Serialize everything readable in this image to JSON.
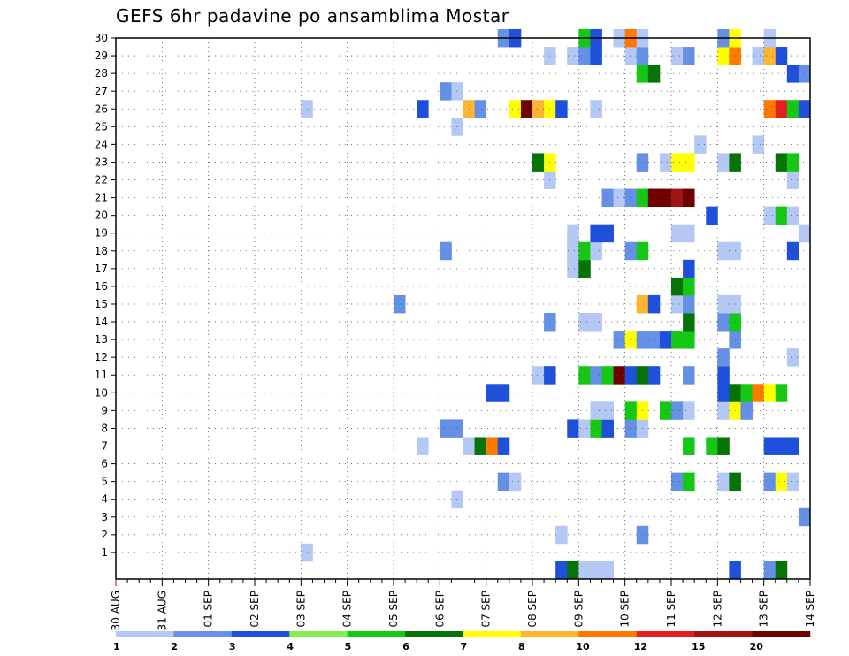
{
  "chart_data": {
    "type": "heatmap",
    "title": "GEFS 6hr padavine po ansamblima Mostar",
    "x_tick_labels": [
      "30 AUG",
      "31 AUG",
      "01 SEP",
      "02 SEP",
      "03 SEP",
      "04 SEP",
      "05 SEP",
      "06 SEP",
      "07 SEP",
      "08 SEP",
      "09 SEP",
      "10 SEP",
      "11 SEP",
      "12 SEP",
      "13 SEP",
      "14 SEP"
    ],
    "y_tick_labels": [
      "1",
      "2",
      "3",
      "4",
      "5",
      "6",
      "7",
      "8",
      "9",
      "10",
      "11",
      "12",
      "13",
      "14",
      "15",
      "16",
      "17",
      "18",
      "19",
      "20",
      "21",
      "22",
      "23",
      "24",
      "25",
      "26",
      "27",
      "28",
      "29",
      "30"
    ],
    "ylim": [
      0,
      30
    ],
    "x_steps": 60,
    "steps_per_day": 4,
    "grid": true,
    "legend": {
      "placement": "bottom",
      "labels": [
        "1",
        "2",
        "3",
        "4",
        "5",
        "6",
        "7",
        "8",
        "10",
        "12",
        "15",
        "20"
      ],
      "colors": [
        "#b4c8f5",
        "#6490e6",
        "#1e50dc",
        "#82f050",
        "#14c814",
        "#057305",
        "#ffff00",
        "#ffb432",
        "#ff7800",
        "#e61e1e",
        "#a01414",
        "#6e0000"
      ]
    },
    "cells": [
      [
        17,
        1,
        1
      ],
      [
        39,
        2,
        1
      ],
      [
        46,
        2,
        2
      ],
      [
        60,
        3,
        2
      ],
      [
        30,
        4,
        1
      ],
      [
        34,
        5,
        2
      ],
      [
        35,
        5,
        1
      ],
      [
        49,
        5,
        2
      ],
      [
        50,
        5,
        5
      ],
      [
        53,
        5,
        1
      ],
      [
        54,
        5,
        6
      ],
      [
        57,
        5,
        2
      ],
      [
        58,
        5,
        7
      ],
      [
        59,
        5,
        1
      ],
      [
        27,
        7,
        1
      ],
      [
        31,
        7,
        1
      ],
      [
        32,
        7,
        6
      ],
      [
        33,
        7,
        9
      ],
      [
        34,
        7,
        3
      ],
      [
        50,
        7,
        5
      ],
      [
        52,
        7,
        5
      ],
      [
        53,
        7,
        6
      ],
      [
        57,
        7,
        3
      ],
      [
        58,
        7,
        3
      ],
      [
        59,
        7,
        3
      ],
      [
        29,
        8,
        2
      ],
      [
        30,
        8,
        2
      ],
      [
        40,
        8,
        3
      ],
      [
        41,
        8,
        1
      ],
      [
        42,
        8,
        5
      ],
      [
        43,
        8,
        3
      ],
      [
        45,
        8,
        2
      ],
      [
        46,
        8,
        1
      ],
      [
        42,
        9,
        1
      ],
      [
        43,
        9,
        1
      ],
      [
        45,
        9,
        5
      ],
      [
        46,
        9,
        7
      ],
      [
        48,
        9,
        5
      ],
      [
        49,
        9,
        2
      ],
      [
        50,
        9,
        1
      ],
      [
        53,
        9,
        1
      ],
      [
        54,
        9,
        7
      ],
      [
        55,
        9,
        2
      ],
      [
        33,
        10,
        3
      ],
      [
        34,
        10,
        3
      ],
      [
        53,
        10,
        3
      ],
      [
        54,
        10,
        6
      ],
      [
        55,
        10,
        5
      ],
      [
        56,
        10,
        9
      ],
      [
        57,
        10,
        7
      ],
      [
        58,
        10,
        5
      ],
      [
        37,
        11,
        1
      ],
      [
        38,
        11,
        3
      ],
      [
        41,
        11,
        5
      ],
      [
        42,
        11,
        2
      ],
      [
        43,
        11,
        5
      ],
      [
        44,
        11,
        12
      ],
      [
        45,
        11,
        3
      ],
      [
        46,
        11,
        6
      ],
      [
        47,
        11,
        3
      ],
      [
        50,
        11,
        2
      ],
      [
        53,
        11,
        3
      ],
      [
        53,
        12,
        2
      ],
      [
        59,
        12,
        1
      ],
      [
        44,
        13,
        2
      ],
      [
        45,
        13,
        7
      ],
      [
        46,
        13,
        2
      ],
      [
        47,
        13,
        2
      ],
      [
        48,
        13,
        3
      ],
      [
        49,
        13,
        5
      ],
      [
        50,
        13,
        5
      ],
      [
        54,
        13,
        2
      ],
      [
        38,
        14,
        2
      ],
      [
        41,
        14,
        1
      ],
      [
        42,
        14,
        1
      ],
      [
        50,
        14,
        6
      ],
      [
        53,
        14,
        2
      ],
      [
        54,
        14,
        5
      ],
      [
        25,
        15,
        2
      ],
      [
        46,
        15,
        8
      ],
      [
        47,
        15,
        3
      ],
      [
        49,
        15,
        1
      ],
      [
        50,
        15,
        2
      ],
      [
        53,
        15,
        1
      ],
      [
        54,
        15,
        1
      ],
      [
        49,
        16,
        6
      ],
      [
        50,
        16,
        5
      ],
      [
        40,
        17,
        1
      ],
      [
        41,
        17,
        6
      ],
      [
        50,
        17,
        3
      ],
      [
        29,
        18,
        2
      ],
      [
        40,
        18,
        1
      ],
      [
        41,
        18,
        5
      ],
      [
        42,
        18,
        1
      ],
      [
        45,
        18,
        2
      ],
      [
        46,
        18,
        5
      ],
      [
        53,
        18,
        1
      ],
      [
        54,
        18,
        1
      ],
      [
        59,
        18,
        3
      ],
      [
        40,
        19,
        1
      ],
      [
        42,
        19,
        3
      ],
      [
        43,
        19,
        3
      ],
      [
        49,
        19,
        1
      ],
      [
        50,
        19,
        1
      ],
      [
        60,
        19,
        1
      ],
      [
        52,
        20,
        3
      ],
      [
        57,
        20,
        1
      ],
      [
        58,
        20,
        5
      ],
      [
        59,
        20,
        1
      ],
      [
        43,
        21,
        2
      ],
      [
        44,
        21,
        1
      ],
      [
        45,
        21,
        2
      ],
      [
        46,
        21,
        5
      ],
      [
        47,
        21,
        12
      ],
      [
        48,
        21,
        12
      ],
      [
        49,
        21,
        11
      ],
      [
        50,
        21,
        12
      ],
      [
        38,
        22,
        1
      ],
      [
        59,
        22,
        1
      ],
      [
        37,
        23,
        6
      ],
      [
        38,
        23,
        7
      ],
      [
        46,
        23,
        2
      ],
      [
        48,
        23,
        1
      ],
      [
        49,
        23,
        7
      ],
      [
        50,
        23,
        7
      ],
      [
        53,
        23,
        1
      ],
      [
        54,
        23,
        6
      ],
      [
        58,
        23,
        6
      ],
      [
        59,
        23,
        5
      ],
      [
        51,
        24,
        1
      ],
      [
        56,
        24,
        1
      ],
      [
        30,
        25,
        1
      ],
      [
        17,
        26,
        1
      ],
      [
        27,
        26,
        3
      ],
      [
        31,
        26,
        8
      ],
      [
        32,
        26,
        2
      ],
      [
        35,
        26,
        7
      ],
      [
        36,
        26,
        12
      ],
      [
        37,
        26,
        8
      ],
      [
        38,
        26,
        7
      ],
      [
        39,
        26,
        3
      ],
      [
        42,
        26,
        1
      ],
      [
        57,
        26,
        9
      ],
      [
        58,
        26,
        10
      ],
      [
        59,
        26,
        5
      ],
      [
        60,
        26,
        3
      ],
      [
        29,
        27,
        2
      ],
      [
        30,
        27,
        1
      ],
      [
        46,
        28,
        5
      ],
      [
        47,
        28,
        6
      ],
      [
        59,
        28,
        3
      ],
      [
        60,
        28,
        2
      ],
      [
        38,
        29,
        1
      ],
      [
        40,
        29,
        1
      ],
      [
        41,
        29,
        2
      ],
      [
        42,
        29,
        3
      ],
      [
        45,
        29,
        1
      ],
      [
        46,
        29,
        2
      ],
      [
        49,
        29,
        1
      ],
      [
        50,
        29,
        2
      ],
      [
        53,
        29,
        7
      ],
      [
        54,
        29,
        9
      ],
      [
        56,
        29,
        1
      ],
      [
        57,
        29,
        8
      ],
      [
        58,
        29,
        3
      ],
      [
        34,
        30,
        2
      ],
      [
        35,
        30,
        3
      ],
      [
        41,
        30,
        5
      ],
      [
        42,
        30,
        3
      ],
      [
        44,
        30,
        1
      ],
      [
        45,
        30,
        9
      ],
      [
        46,
        30,
        1
      ],
      [
        53,
        30,
        2
      ],
      [
        54,
        30,
        7
      ],
      [
        57,
        30,
        1
      ],
      [
        39,
        0,
        3
      ],
      [
        40,
        0,
        6
      ],
      [
        41,
        0,
        1
      ],
      [
        42,
        0,
        1
      ],
      [
        43,
        0,
        1
      ],
      [
        54,
        0,
        3
      ],
      [
        57,
        0,
        2
      ],
      [
        58,
        0,
        6
      ]
    ]
  }
}
